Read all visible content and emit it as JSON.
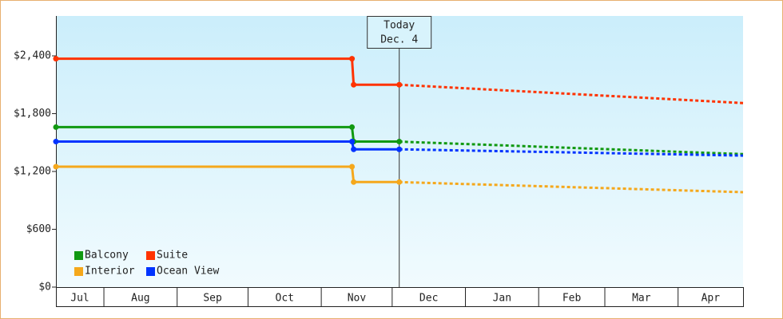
{
  "chart_data": {
    "type": "step-line",
    "today": {
      "x": 156,
      "label": "Today",
      "date": "Dec. 4"
    },
    "categories": [
      "Jul",
      "Aug",
      "Sep",
      "Oct",
      "Nov",
      "Dec",
      "Jan",
      "Feb",
      "Mar",
      "Apr"
    ],
    "category_starts": [
      0,
      31,
      62,
      92,
      123,
      153,
      184,
      215,
      243,
      274
    ],
    "xlim": [
      10.7,
      301.5
    ],
    "ylim": [
      0,
      2814
    ],
    "yticks": [
      {
        "value": 0,
        "label": "$0"
      },
      {
        "value": 600,
        "label": "$600"
      },
      {
        "value": 1200,
        "label": "$1,200"
      },
      {
        "value": 1800,
        "label": "$1,800"
      },
      {
        "value": 2400,
        "label": "$2,400"
      }
    ],
    "series": [
      {
        "name": "Balcony",
        "color": "#119911",
        "x": [
          10.7,
          136,
          136.7,
          156
        ],
        "values": [
          1660,
          1660,
          1510,
          1510
        ],
        "forecast_x": [
          156,
          301.5
        ],
        "forecast_values": [
          1510,
          1380
        ]
      },
      {
        "name": "Suite",
        "color": "#ff3300",
        "x": [
          10.7,
          136,
          136.7,
          156
        ],
        "values": [
          2370,
          2370,
          2100,
          2100
        ],
        "forecast_x": [
          156,
          301.5
        ],
        "forecast_values": [
          2100,
          1910
        ]
      },
      {
        "name": "Interior",
        "color": "#f5a81c",
        "x": [
          10.7,
          136,
          136.7,
          156
        ],
        "values": [
          1250,
          1250,
          1090,
          1090
        ],
        "forecast_x": [
          156,
          301.5
        ],
        "forecast_values": [
          1090,
          985
        ]
      },
      {
        "name": "Ocean View",
        "color": "#0033ff",
        "x": [
          10.7,
          136,
          136.7,
          156
        ],
        "values": [
          1510,
          1510,
          1430,
          1430
        ],
        "forecast_x": [
          156,
          301.5
        ],
        "forecast_values": [
          1430,
          1365
        ]
      }
    ]
  }
}
